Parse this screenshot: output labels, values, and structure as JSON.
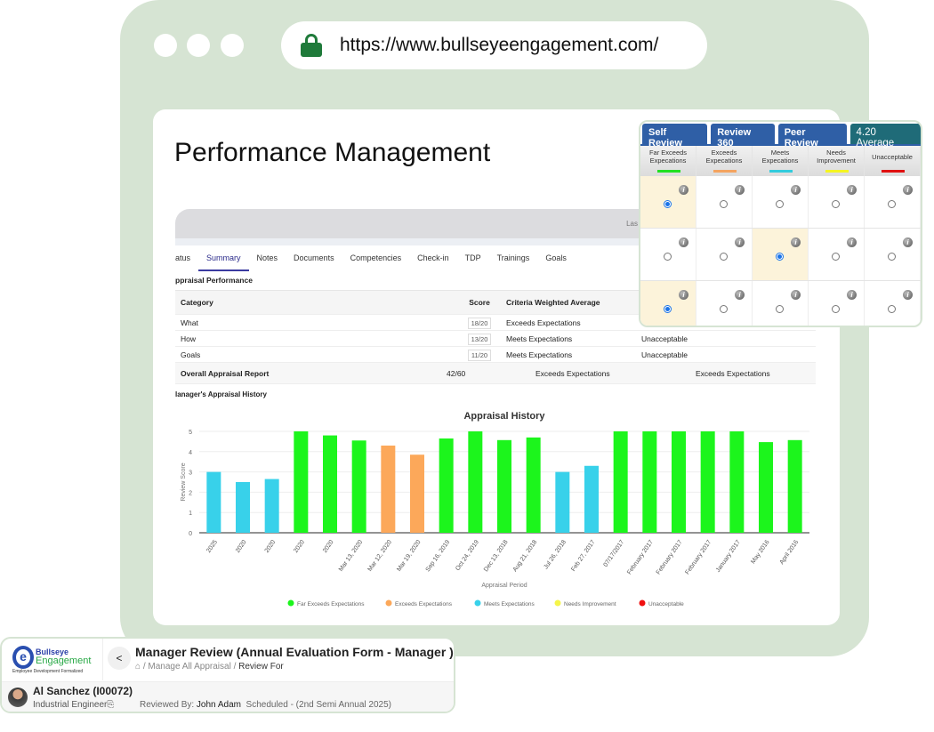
{
  "browser": {
    "url": "https://www.bullseyeengagement.com/"
  },
  "page": {
    "title": "Performance Management",
    "header_note": "Las"
  },
  "tabs": [
    "atus",
    "Summary",
    "Notes",
    "Documents",
    "Competencies",
    "Check-in",
    "TDP",
    "Trainings",
    "Goals"
  ],
  "appraisal": {
    "section_title": "ppraisal Performance",
    "headers": [
      "Category",
      "Score",
      "Criteria Weighted Average"
    ],
    "rows": [
      {
        "category": "What",
        "score": "18/20",
        "cwa": "Exceeds Expectations",
        "extra": ""
      },
      {
        "category": "How",
        "score": "13/20",
        "cwa": "Meets Expectations",
        "extra": "Unacceptable"
      },
      {
        "category": "Goals",
        "score": "11/20",
        "cwa": "Meets Expectations",
        "extra": "Unacceptable"
      }
    ],
    "overall": {
      "label": "Overall Appraisal Report",
      "score": "42/60",
      "cwa": "Exceeds Expectations",
      "extra": "Exceeds Expectations"
    },
    "history_title": "lanager's Appraisal History"
  },
  "chart_data": {
    "type": "bar",
    "title": "Appraisal History",
    "xlabel": "Appraisal Period",
    "ylabel": "Review Score",
    "ylim": [
      0,
      5
    ],
    "yticks": [
      "0",
      "1",
      "2",
      "3",
      "4",
      "5"
    ],
    "categories": [
      "2025",
      "2020",
      "2020",
      "2020",
      "2020",
      "Mar 13, 2020",
      "Mar 12, 2020",
      "Mar 19, 2020",
      "Sep 16, 2019",
      "Oct 24, 2019",
      "Dec 13, 2018",
      "Aug 21, 2018",
      "Jul 26, 2018",
      "Feb 27, 2017",
      "07/17/2017",
      "February 2017",
      "February 2017",
      "February 2017",
      "January 2017",
      "May 2016",
      "April 2016"
    ],
    "values": [
      3.0,
      2.5,
      2.65,
      5.0,
      4.8,
      4.55,
      4.3,
      3.85,
      4.65,
      5.0,
      4.57,
      4.7,
      3.0,
      3.3,
      5.0,
      5.0,
      5.0,
      5.0,
      5.0,
      4.47,
      4.57
    ],
    "rating": [
      2,
      2,
      2,
      0,
      0,
      0,
      1,
      1,
      0,
      0,
      0,
      0,
      2,
      2,
      0,
      0,
      0,
      0,
      0,
      0,
      0
    ],
    "legend": [
      {
        "name": "Far Exceeds Expectations",
        "color": "#1cf51c"
      },
      {
        "name": "Exceeds Expectations",
        "color": "#fca85a"
      },
      {
        "name": "Meets Expectations",
        "color": "#38d1ea"
      },
      {
        "name": "Needs Improvement",
        "color": "#f5f54a"
      },
      {
        "name": "Unacceptable",
        "color": "#f01010"
      }
    ],
    "legend_placement": "bottom"
  },
  "review_panel": {
    "buttons": [
      "Self Review",
      "Review 360",
      "Peer Review"
    ],
    "average": "4.20 Average",
    "columns": [
      {
        "l1": "Far Exceeds",
        "l2": "Expecations",
        "color": "#22e022"
      },
      {
        "l1": "Exceeds",
        "l2": "Expecations",
        "color": "#f4a460"
      },
      {
        "l1": "Meets",
        "l2": "Expecations",
        "color": "#33ccdd"
      },
      {
        "l1": "Needs",
        "l2": "Improvement",
        "color": "#f5f522"
      },
      {
        "l1": "Unacceptable",
        "l2": "",
        "color": "#e01010"
      }
    ],
    "selected": [
      0,
      2,
      0
    ],
    "info_glyph": "i"
  },
  "review_header": {
    "logo": {
      "line1": "Bullseye",
      "line2": "Engagement",
      "tagline": "Employee Development Formalized"
    },
    "back": "<",
    "title": "Manager Review (Annual Evaluation Form - Manager )",
    "breadcrumb": [
      "Manage All Appraisal",
      "Review For"
    ],
    "employee": {
      "name": "Al Sanchez (I00072)",
      "role": "Industrial Engineer",
      "reviewed_by_label": "Reviewed By:",
      "reviewer": "John Adam",
      "schedule": "Scheduled - (2nd Semi Annual 2025)"
    }
  }
}
